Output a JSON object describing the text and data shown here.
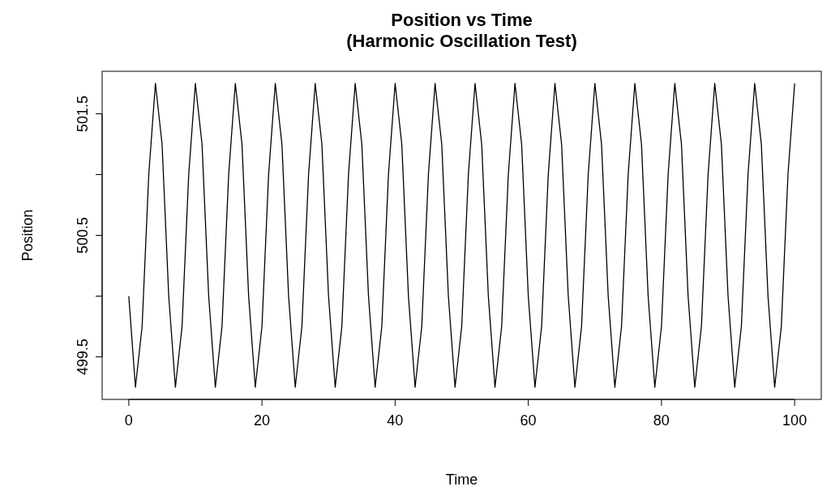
{
  "chart_data": {
    "type": "line",
    "title": "Position vs Time\n(Harmonic Oscillation Test)",
    "xlabel": "Time",
    "ylabel": "Position",
    "x": [
      0,
      1,
      2,
      3,
      4,
      5,
      6,
      7,
      8,
      9,
      10,
      11,
      12,
      13,
      14,
      15,
      16,
      17,
      18,
      19,
      20,
      21,
      22,
      23,
      24,
      25,
      26,
      27,
      28,
      29,
      30,
      31,
      32,
      33,
      34,
      35,
      36,
      37,
      38,
      39,
      40,
      41,
      42,
      43,
      44,
      45,
      46,
      47,
      48,
      49,
      50,
      51,
      52,
      53,
      54,
      55,
      56,
      57,
      58,
      59,
      60,
      61,
      62,
      63,
      64,
      65,
      66,
      67,
      68,
      69,
      70,
      71,
      72,
      73,
      74,
      75,
      76,
      77,
      78,
      79,
      80,
      81,
      82,
      83,
      84,
      85,
      86,
      87,
      88,
      89,
      90,
      91,
      92,
      93,
      94,
      95,
      96,
      97,
      98,
      99,
      100
    ],
    "series": [
      {
        "color": "#000000",
        "values": [
          500,
          499.25,
          499.75,
          501,
          501.75,
          501.25,
          500,
          499.25,
          499.75,
          501,
          501.75,
          501.25,
          500,
          499.25,
          499.75,
          501,
          501.75,
          501.25,
          500,
          499.25,
          499.75,
          501,
          501.75,
          501.25,
          500,
          499.25,
          499.75,
          501,
          501.75,
          501.25,
          500,
          499.25,
          499.75,
          501,
          501.75,
          501.25,
          500,
          499.25,
          499.75,
          501,
          501.75,
          501.25,
          500,
          499.25,
          499.75,
          501,
          501.75,
          501.25,
          500,
          499.25,
          499.75,
          501,
          501.75,
          501.25,
          500,
          499.25,
          499.75,
          501,
          501.75,
          501.25,
          500,
          499.25,
          499.75,
          501,
          501.75,
          501.25,
          500,
          499.25,
          499.75,
          501,
          501.75,
          501.25,
          500,
          499.25,
          499.75,
          501,
          501.75,
          501.25,
          500,
          499.25,
          499.75,
          501,
          501.75,
          501.25,
          500,
          499.25,
          499.75,
          501,
          501.75,
          501.25,
          500,
          499.25,
          499.75,
          501,
          501.75,
          501.25,
          500,
          499.25,
          499.75,
          501,
          501.75
        ]
      }
    ],
    "xlim": [
      -4,
      104
    ],
    "ylim": [
      499.15,
      501.85
    ],
    "xticks": [
      0,
      20,
      40,
      60,
      80,
      100
    ],
    "yticks": [
      {
        "value": 499.5,
        "label": "499.5"
      },
      {
        "value": 500,
        "label": null
      },
      {
        "value": 500.5,
        "label": "500.5"
      },
      {
        "value": 501,
        "label": null
      },
      {
        "value": 501.5,
        "label": "501.5"
      }
    ],
    "grid": false,
    "marker": "none",
    "line_style": "solid"
  }
}
